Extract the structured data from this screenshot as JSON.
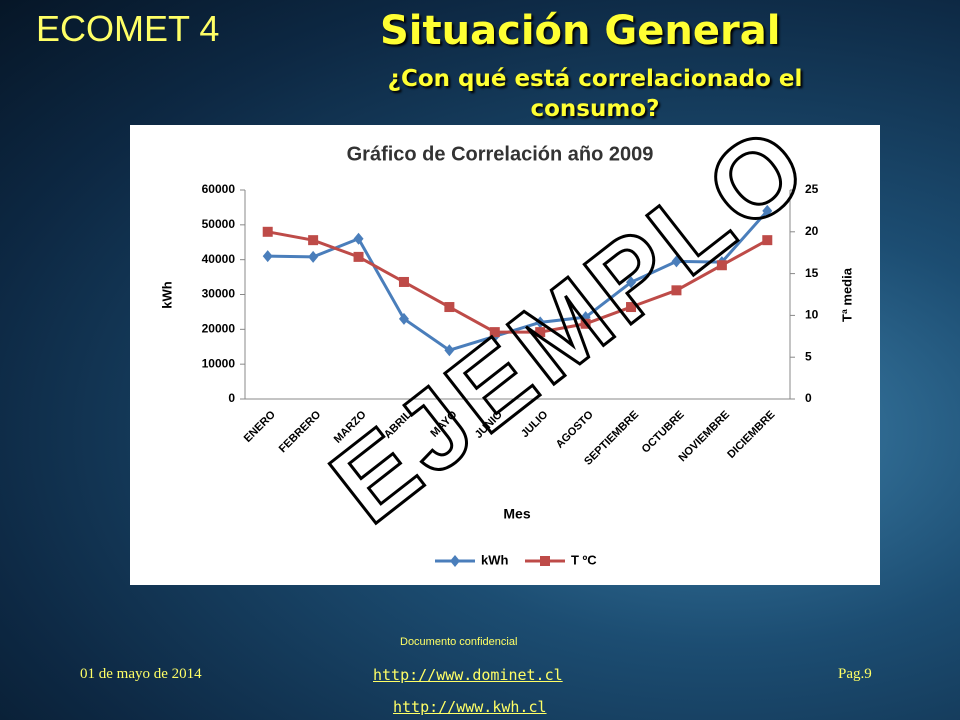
{
  "slide": {
    "brand": "ECOMET 4",
    "title": "Situación General",
    "subtitle": "¿Con qué está correlacionado el consumo?",
    "confidential": "Documento confidencial",
    "date": "01 de mayo de 2014",
    "page": "Pag.9",
    "links": [
      "http://www.dominet.cl",
      "http://www.kwh.cl"
    ],
    "watermark": "EJEMPLO"
  },
  "chart_data": {
    "type": "line",
    "title": "Gráfico de Correlación año 2009",
    "x_label": "Mes",
    "y_label": "kWh",
    "y2_label": "Tª media",
    "categories": [
      "ENERO",
      "FEBRERO",
      "MARZO",
      "ABRIL",
      "MAYO",
      "JUNIO",
      "JULIO",
      "AGOSTO",
      "SEPTIEMBRE",
      "OCTUBRE",
      "NOVIEMBRE",
      "DICIEMBRE"
    ],
    "series": [
      {
        "name": "kWh",
        "color": "#4a7ebb",
        "marker": "diamond",
        "values": [
          41000,
          40800,
          46000,
          23000,
          14000,
          18000,
          22000,
          23500,
          33500,
          39500,
          39300,
          54000
        ]
      },
      {
        "name": "T ºC",
        "color": "#be4b48",
        "marker": "square",
        "axis": "y2",
        "values": [
          20,
          19,
          17,
          14,
          11,
          8,
          8,
          9,
          11,
          13,
          16,
          19
        ]
      }
    ],
    "ylim": [
      0,
      60000
    ],
    "yticks": [
      0,
      10000,
      20000,
      30000,
      40000,
      50000,
      60000
    ],
    "y2lim": [
      0,
      25
    ],
    "y2ticks": [
      0,
      5,
      10,
      15,
      20,
      25
    ],
    "legend": "bottom"
  }
}
